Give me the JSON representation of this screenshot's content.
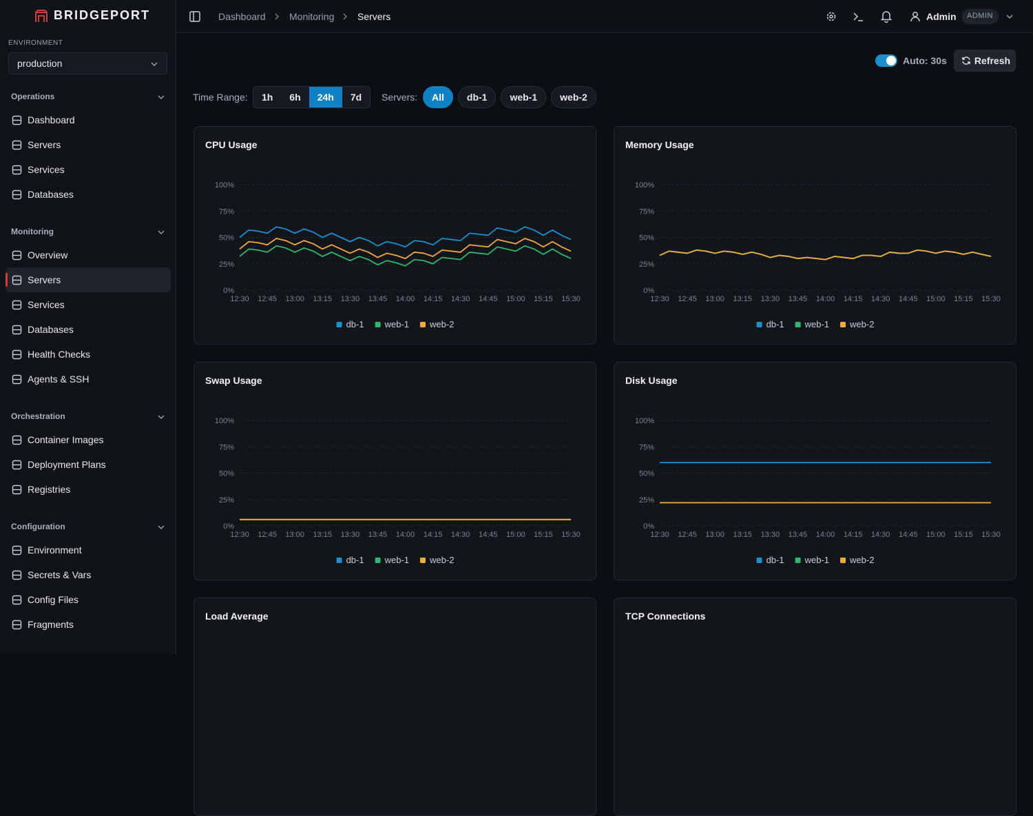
{
  "sidebar": {
    "brand": "BRIDGEPORT",
    "environment_label": "ENVIRONMENT",
    "environment": "production",
    "active": [
      1,
      1
    ],
    "sections": [
      {
        "title": "Operations",
        "items": [
          "Dashboard",
          "Servers",
          "Services",
          "Databases"
        ]
      },
      {
        "title": "Monitoring",
        "items": [
          "Overview",
          "Servers",
          "Services",
          "Databases",
          "Health Checks",
          "Agents & SSH"
        ]
      },
      {
        "title": "Orchestration",
        "items": [
          "Container Images",
          "Deployment Plans",
          "Registries"
        ]
      },
      {
        "title": "Configuration",
        "items": [
          "Environment",
          "Secrets & Vars",
          "Config Files",
          "Fragments"
        ]
      }
    ]
  },
  "header": {
    "breadcrumbs": [
      "Dashboard",
      "Monitoring",
      "Servers"
    ],
    "user": "Admin",
    "role": "ADMIN"
  },
  "toolbar": {
    "auto": "Auto: 30s",
    "refresh": "Refresh",
    "time_range_label": "Time Range:",
    "time_ranges": [
      "1h",
      "6h",
      "24h",
      "7d"
    ],
    "active_range": 2,
    "servers_label": "Servers:",
    "servers": [
      "All",
      "db-1",
      "web-1",
      "web-2"
    ],
    "active_server": 0
  },
  "chart_data": [
    {
      "type": "line",
      "title": "CPU Usage",
      "categories": [
        "12:30",
        null,
        null,
        "12:45",
        null,
        null,
        "13:00",
        null,
        null,
        "13:15",
        null,
        null,
        "13:30",
        null,
        null,
        "13:45",
        null,
        null,
        "14:00",
        null,
        null,
        "14:15",
        null,
        null,
        "14:30",
        null,
        null,
        "14:45",
        null,
        null,
        "15:00",
        null,
        null,
        "15:15",
        null,
        null,
        "15:30"
      ],
      "ylim": [
        0,
        100
      ],
      "yticks": [
        {
          "value": 0,
          "label": "0%"
        },
        {
          "value": 25,
          "label": "25%"
        },
        {
          "value": 50,
          "label": "50%"
        },
        {
          "value": 75,
          "label": "75%"
        },
        {
          "value": 100,
          "label": "100%"
        }
      ],
      "grid": true,
      "series": [
        {
          "name": "db-1",
          "color": "#1b8fd0",
          "values": [
            50,
            57,
            56,
            54,
            60,
            58,
            54,
            58,
            55,
            50,
            54,
            50,
            46,
            50,
            47,
            42,
            46,
            44,
            41,
            47,
            46,
            43,
            49,
            48,
            47,
            54,
            53,
            52,
            59,
            57,
            55,
            60,
            57,
            52,
            57,
            52,
            48
          ]
        },
        {
          "name": "web-1",
          "color": "#2fb86c",
          "values": [
            32,
            39,
            38,
            36,
            42,
            40,
            36,
            40,
            37,
            32,
            36,
            32,
            28,
            32,
            29,
            24,
            28,
            26,
            23,
            29,
            28,
            25,
            31,
            30,
            29,
            36,
            35,
            34,
            41,
            39,
            37,
            42,
            39,
            34,
            39,
            34,
            30
          ]
        },
        {
          "name": "web-2",
          "color": "#f2aa3c",
          "values": [
            39,
            46,
            45,
            43,
            49,
            47,
            43,
            47,
            44,
            39,
            43,
            39,
            35,
            39,
            36,
            31,
            35,
            33,
            30,
            36,
            35,
            32,
            38,
            37,
            36,
            43,
            42,
            41,
            48,
            46,
            44,
            49,
            46,
            41,
            46,
            41,
            37
          ]
        }
      ]
    },
    {
      "type": "line",
      "title": "Memory Usage",
      "categories": [
        "12:30",
        null,
        null,
        "12:45",
        null,
        null,
        "13:00",
        null,
        null,
        "13:15",
        null,
        null,
        "13:30",
        null,
        null,
        "13:45",
        null,
        null,
        "14:00",
        null,
        null,
        "14:15",
        null,
        null,
        "14:30",
        null,
        null,
        "14:45",
        null,
        null,
        "15:00",
        null,
        null,
        "15:15",
        null,
        null,
        "15:30"
      ],
      "ylim": [
        0,
        100
      ],
      "yticks": [
        {
          "value": 0,
          "label": "0%"
        },
        {
          "value": 25,
          "label": "25%"
        },
        {
          "value": 50,
          "label": "50%"
        },
        {
          "value": 75,
          "label": "75%"
        },
        {
          "value": 100,
          "label": "100%"
        }
      ],
      "grid": true,
      "series": [
        {
          "name": "db-1",
          "color": "#1b8fd0",
          "values": [
            33,
            37,
            36,
            35,
            38,
            37,
            35,
            37,
            36,
            34,
            36,
            34,
            31,
            33,
            32,
            30,
            31,
            30,
            29,
            32,
            31,
            30,
            33,
            33,
            32,
            36,
            35,
            35,
            38,
            37,
            35,
            37,
            36,
            34,
            36,
            34,
            32
          ]
        },
        {
          "name": "web-1",
          "color": "#2fb86c",
          "values": [
            33,
            37,
            36,
            35,
            38,
            37,
            35,
            37,
            36,
            34,
            36,
            34,
            31,
            33,
            32,
            30,
            31,
            30,
            29,
            32,
            31,
            30,
            33,
            33,
            32,
            36,
            35,
            35,
            38,
            37,
            35,
            37,
            36,
            34,
            36,
            34,
            32
          ]
        },
        {
          "name": "web-2",
          "color": "#f2aa3c",
          "values": [
            33,
            37,
            36,
            35,
            38,
            37,
            35,
            37,
            36,
            34,
            36,
            34,
            31,
            33,
            32,
            30,
            31,
            30,
            29,
            32,
            31,
            30,
            33,
            33,
            32,
            36,
            35,
            35,
            38,
            37,
            35,
            37,
            36,
            34,
            36,
            34,
            32
          ]
        }
      ]
    },
    {
      "type": "line",
      "title": "Swap Usage",
      "categories": [
        "12:30",
        null,
        null,
        "12:45",
        null,
        null,
        "13:00",
        null,
        null,
        "13:15",
        null,
        null,
        "13:30",
        null,
        null,
        "13:45",
        null,
        null,
        "14:00",
        null,
        null,
        "14:15",
        null,
        null,
        "14:30",
        null,
        null,
        "14:45",
        null,
        null,
        "15:00",
        null,
        null,
        "15:15",
        null,
        null,
        "15:30"
      ],
      "ylim": [
        0,
        100
      ],
      "yticks": [
        {
          "value": 0,
          "label": "0%"
        },
        {
          "value": 25,
          "label": "25%"
        },
        {
          "value": 50,
          "label": "50%"
        },
        {
          "value": 75,
          "label": "75%"
        },
        {
          "value": 100,
          "label": "100%"
        }
      ],
      "grid": true,
      "series": [
        {
          "name": "db-1",
          "color": "#1b8fd0",
          "values": [
            6,
            6,
            6,
            6,
            6,
            6,
            6,
            6,
            6,
            6,
            6,
            6,
            6,
            6,
            6,
            6,
            6,
            6,
            6,
            6,
            6,
            6,
            6,
            6,
            6,
            6,
            6,
            6,
            6,
            6,
            6,
            6,
            6,
            6,
            6,
            6,
            6
          ]
        },
        {
          "name": "web-1",
          "color": "#2fb86c",
          "values": [
            6,
            6,
            6,
            6,
            6,
            6,
            6,
            6,
            6,
            6,
            6,
            6,
            6,
            6,
            6,
            6,
            6,
            6,
            6,
            6,
            6,
            6,
            6,
            6,
            6,
            6,
            6,
            6,
            6,
            6,
            6,
            6,
            6,
            6,
            6,
            6,
            6
          ]
        },
        {
          "name": "web-2",
          "color": "#f2aa3c",
          "values": [
            6,
            6,
            6,
            6,
            6,
            6,
            6,
            6,
            6,
            6,
            6,
            6,
            6,
            6,
            6,
            6,
            6,
            6,
            6,
            6,
            6,
            6,
            6,
            6,
            6,
            6,
            6,
            6,
            6,
            6,
            6,
            6,
            6,
            6,
            6,
            6,
            6
          ]
        }
      ]
    },
    {
      "type": "line",
      "title": "Disk Usage",
      "categories": [
        "12:30",
        null,
        null,
        "12:45",
        null,
        null,
        "13:00",
        null,
        null,
        "13:15",
        null,
        null,
        "13:30",
        null,
        null,
        "13:45",
        null,
        null,
        "14:00",
        null,
        null,
        "14:15",
        null,
        null,
        "14:30",
        null,
        null,
        "14:45",
        null,
        null,
        "15:00",
        null,
        null,
        "15:15",
        null,
        null,
        "15:30"
      ],
      "ylim": [
        0,
        100
      ],
      "yticks": [
        {
          "value": 0,
          "label": "0%"
        },
        {
          "value": 25,
          "label": "25%"
        },
        {
          "value": 50,
          "label": "50%"
        },
        {
          "value": 75,
          "label": "75%"
        },
        {
          "value": 100,
          "label": "100%"
        }
      ],
      "grid": true,
      "series": [
        {
          "name": "db-1",
          "color": "#1b8fd0",
          "values": [
            60,
            60,
            60,
            60,
            60,
            60,
            60,
            60,
            60,
            60,
            60,
            60,
            60,
            60,
            60,
            60,
            60,
            60,
            60,
            60,
            60,
            60,
            60,
            60,
            60,
            60,
            60,
            60,
            60,
            60,
            60,
            60,
            60,
            60,
            60,
            60,
            60
          ]
        },
        {
          "name": "web-1",
          "color": "#2fb86c",
          "values": [
            22,
            22,
            22,
            22,
            22,
            22,
            22,
            22,
            22,
            22,
            22,
            22,
            22,
            22,
            22,
            22,
            22,
            22,
            22,
            22,
            22,
            22,
            22,
            22,
            22,
            22,
            22,
            22,
            22,
            22,
            22,
            22,
            22,
            22,
            22,
            22,
            22
          ]
        },
        {
          "name": "web-2",
          "color": "#f2aa3c",
          "values": [
            22,
            22,
            22,
            22,
            22,
            22,
            22,
            22,
            22,
            22,
            22,
            22,
            22,
            22,
            22,
            22,
            22,
            22,
            22,
            22,
            22,
            22,
            22,
            22,
            22,
            22,
            22,
            22,
            22,
            22,
            22,
            22,
            22,
            22,
            22,
            22,
            22
          ]
        }
      ]
    }
  ],
  "panels": [
    {
      "title": "Load Average"
    },
    {
      "title": "TCP Connections"
    }
  ]
}
